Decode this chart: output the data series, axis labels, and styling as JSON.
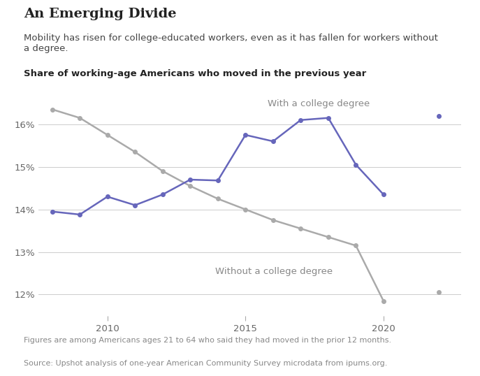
{
  "title": "An Emerging Divide",
  "subtitle": "Mobility has risen for college-educated workers, even as it has fallen for workers without\na degree.",
  "chart_label": "Share of working-age Americans who moved in the previous year",
  "footnote1": "Figures are among Americans ages 21 to 64 who said they had moved in the prior 12 months.",
  "footnote2": "Source: Upshot analysis of one-year American Community Survey microdata from ipums.org.",
  "years": [
    2008,
    2009,
    2010,
    2011,
    2012,
    2013,
    2014,
    2015,
    2016,
    2017,
    2018,
    2019,
    2020,
    2021,
    2022
  ],
  "college_degree": [
    13.95,
    13.88,
    14.3,
    14.1,
    14.35,
    14.7,
    14.68,
    15.75,
    15.6,
    16.1,
    16.15,
    15.05,
    14.35,
    null,
    16.2
  ],
  "no_college_degree": [
    16.35,
    16.15,
    15.75,
    15.35,
    14.9,
    14.55,
    14.25,
    14.0,
    13.75,
    13.55,
    13.35,
    13.15,
    11.85,
    null,
    12.05
  ],
  "college_color": "#6666bb",
  "no_college_color": "#aaaaaa",
  "background_color": "#ffffff",
  "yticks": [
    12,
    13,
    14,
    15,
    16
  ],
  "ylim": [
    11.5,
    16.8
  ],
  "xlim": [
    2007.5,
    2022.8
  ],
  "label_with": "With a college degree",
  "label_without": "Without a college degree",
  "xtick_years": [
    2010,
    2015,
    2020
  ]
}
